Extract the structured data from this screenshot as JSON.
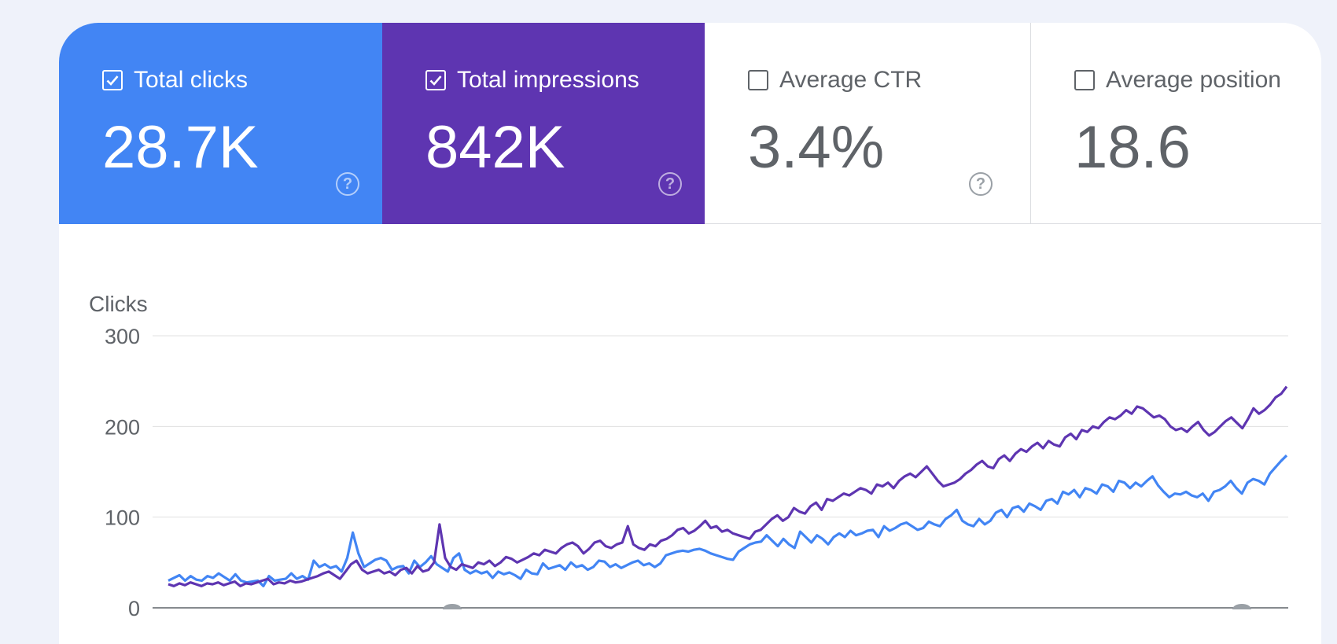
{
  "metrics": [
    {
      "label": "Total clicks",
      "value": "28.7K",
      "checked": true,
      "color": "#4285f4"
    },
    {
      "label": "Total impressions",
      "value": "842K",
      "checked": true,
      "color": "#5e35b1"
    },
    {
      "label": "Average CTR",
      "value": "3.4%",
      "checked": false
    },
    {
      "label": "Average position",
      "value": "18.6",
      "checked": false
    }
  ],
  "help_glyph": "?",
  "chart_data": {
    "type": "line",
    "ylabel": "Clicks",
    "ylim": [
      0,
      300
    ],
    "yticks": [
      "300",
      "200",
      "100",
      "0"
    ],
    "grid": true,
    "series": [
      {
        "color": "#4285f4",
        "values": [
          30,
          33,
          36,
          30,
          35,
          31,
          30,
          35,
          33,
          38,
          34,
          30,
          37,
          30,
          28,
          29,
          30,
          24,
          35,
          30,
          31,
          32,
          38,
          32,
          35,
          31,
          52,
          45,
          48,
          44,
          46,
          40,
          55,
          83,
          60,
          45,
          49,
          53,
          55,
          52,
          42,
          45,
          46,
          38,
          52,
          45,
          50,
          57,
          48,
          44,
          40,
          55,
          60,
          42,
          38,
          41,
          38,
          40,
          33,
          40,
          37,
          39,
          36,
          32,
          42,
          38,
          37,
          49,
          43,
          45,
          47,
          42,
          50,
          45,
          47,
          42,
          45,
          52,
          51,
          45,
          48,
          44,
          47,
          50,
          52,
          47,
          49,
          45,
          49,
          58,
          60,
          62,
          63,
          62,
          64,
          65,
          63,
          60,
          58,
          56,
          54,
          53,
          62,
          66,
          70,
          72,
          73,
          80,
          74,
          68,
          76,
          70,
          66,
          84,
          78,
          72,
          80,
          76,
          70,
          78,
          82,
          78,
          85,
          80,
          82,
          85,
          86,
          78,
          90,
          85,
          88,
          92,
          94,
          90,
          86,
          88,
          95,
          92,
          90,
          98,
          102,
          108,
          96,
          92,
          90,
          98,
          92,
          96,
          105,
          108,
          100,
          110,
          112,
          106,
          115,
          112,
          108,
          118,
          120,
          115,
          128,
          125,
          130,
          122,
          132,
          130,
          126,
          136,
          134,
          128,
          140,
          138,
          132,
          138,
          134,
          140,
          145,
          135,
          128,
          122,
          126,
          125,
          128,
          124,
          122,
          126,
          118,
          128,
          130,
          134,
          140,
          132,
          126,
          138,
          142,
          140,
          136,
          148,
          155,
          162,
          168
        ]
      },
      {
        "color": "#5e35b1",
        "values": [
          26,
          24,
          27,
          25,
          28,
          26,
          24,
          27,
          26,
          28,
          25,
          27,
          29,
          24,
          27,
          26,
          28,
          30,
          32,
          26,
          28,
          27,
          30,
          28,
          29,
          31,
          33,
          35,
          38,
          40,
          36,
          32,
          40,
          48,
          52,
          42,
          38,
          40,
          42,
          38,
          40,
          36,
          42,
          44,
          38,
          46,
          40,
          42,
          50,
          92,
          55,
          45,
          42,
          48,
          46,
          44,
          50,
          48,
          52,
          46,
          50,
          56,
          54,
          50,
          53,
          56,
          60,
          58,
          64,
          62,
          60,
          66,
          70,
          72,
          68,
          60,
          65,
          72,
          74,
          68,
          66,
          70,
          72,
          90,
          70,
          66,
          64,
          70,
          68,
          74,
          76,
          80,
          86,
          88,
          82,
          85,
          90,
          96,
          88,
          90,
          84,
          86,
          82,
          80,
          78,
          76,
          84,
          86,
          92,
          98,
          102,
          96,
          100,
          110,
          106,
          104,
          112,
          116,
          108,
          120,
          118,
          122,
          126,
          124,
          128,
          132,
          130,
          126,
          136,
          134,
          138,
          132,
          140,
          145,
          148,
          144,
          150,
          156,
          148,
          140,
          134,
          136,
          138,
          142,
          148,
          152,
          158,
          162,
          156,
          154,
          164,
          168,
          162,
          170,
          175,
          172,
          178,
          182,
          176,
          184,
          180,
          178,
          188,
          192,
          186,
          196,
          194,
          200,
          198,
          205,
          210,
          208,
          212,
          218,
          214,
          222,
          220,
          215,
          210,
          212,
          208,
          200,
          196,
          198,
          194,
          200,
          205,
          196,
          190,
          194,
          200,
          206,
          210,
          204,
          198,
          208,
          220,
          214,
          218,
          224,
          232,
          236,
          244
        ]
      }
    ]
  }
}
